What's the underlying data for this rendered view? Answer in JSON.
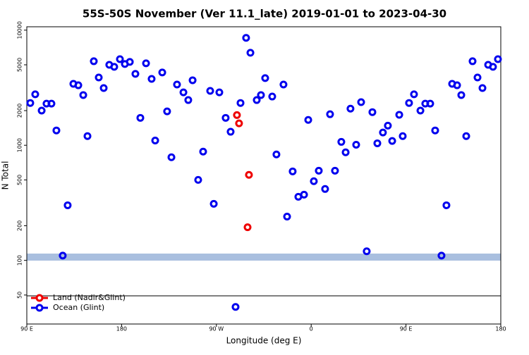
{
  "chart_data": {
    "type": "scatter",
    "title": "55S-50S November (Ver 11.1_late)   2019-01-01 to 2023-04-30",
    "xlabel": "Longitude (deg E)",
    "ylabel": "N Total",
    "xlim": [
      90,
      540
    ],
    "xticks": [
      {
        "value": 90,
        "label": "90 E"
      },
      180,
      {
        "value": 270,
        "label": "90 W"
      },
      {
        "value": 360,
        "label": "0"
      },
      {
        "value": 450,
        "label": "90 E"
      },
      {
        "value": 540,
        "label": "180"
      }
    ],
    "ylim": [
      28,
      10700
    ],
    "ylog": true,
    "yticks": [
      50,
      100,
      200,
      500,
      1000,
      2000,
      5000,
      10000
    ],
    "legend": "bottom-left",
    "series": [
      {
        "name": "Land (Nadir&Glint)",
        "color": "#ee0000",
        "x": [
          289.5,
          291.5,
          300.9,
          299.6
        ],
        "values": [
          1830,
          1550,
          553,
          194
        ]
      },
      {
        "name": "Ocean (Glint)",
        "color": "#0000ee",
        "x": [
          93.3,
          98.0,
          104.1,
          108.7,
          113.4,
          118.1,
          124.1,
          128.8,
          134.2,
          138.9,
          143.6,
          147.6,
          153.6,
          158.3,
          163.0,
          168.3,
          173.0,
          178.4,
          183.1,
          187.8,
          193.1,
          197.8,
          203.2,
          208.5,
          211.9,
          218.6,
          223.2,
          227.3,
          232.6,
          238.7,
          243.3,
          247.4,
          252.7,
          257.4,
          264.1,
          267.5,
          272.8,
          278.8,
          283.5,
          288.2,
          292.9,
          298.2,
          302.3,
          308.3,
          312.3,
          316.3,
          323.0,
          327.0,
          333.7,
          337.1,
          342.4,
          347.8,
          353.2,
          357.2,
          362.5,
          367.2,
          373.2,
          377.9,
          382.6,
          388.6,
          392.7,
          397.3,
          402.7,
          407.4,
          412.7,
          418.1,
          422.8,
          428.1,
          432.8,
          436.9,
          443.6,
          446.9,
          452.9,
          457.6,
          463.7,
          468.3,
          473.0,
          477.7,
          483.7,
          488.4,
          493.8,
          498.5,
          502.5,
          507.2,
          513.2,
          517.9,
          522.6,
          528.0,
          532.6,
          537.3
        ],
        "values": [
          2330,
          2770,
          2000,
          2300,
          2300,
          1345,
          110,
          301,
          3420,
          3320,
          2730,
          1200,
          5370,
          3880,
          3140,
          5000,
          4800,
          5600,
          5080,
          5300,
          4170,
          1730,
          5150,
          3770,
          1100,
          4290,
          1970,
          787,
          3370,
          2880,
          2470,
          3670,
          500,
          881,
          2970,
          310,
          2880,
          1730,
          1310,
          39.4,
          2330,
          8570,
          6360,
          2470,
          2730,
          3830,
          2650,
          832,
          3370,
          240,
          593,
          357,
          372,
          1660,
          487,
          601,
          417,
          1860,
          601,
          1070,
          868,
          2080,
          1010,
          2370,
          120,
          1940,
          1040,
          1290,
          1480,
          1090,
          1840,
          1200,
          2330,
          2770,
          2000,
          2300,
          2300,
          1345,
          110,
          301,
          3420,
          3320,
          2730,
          1200,
          5370,
          3880,
          3140,
          5000,
          4800,
          5600
        ]
      }
    ]
  }
}
